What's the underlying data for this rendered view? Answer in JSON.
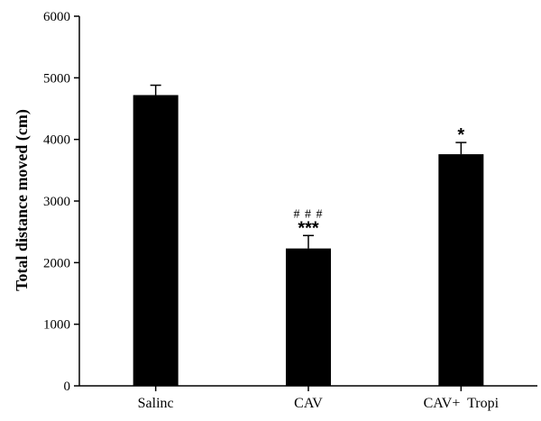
{
  "chart_data": {
    "type": "bar",
    "categories": [
      "Salinc",
      "CAV",
      "CAV+  Tropi"
    ],
    "values": [
      4720,
      2230,
      3760
    ],
    "errors": [
      160,
      210,
      190
    ],
    "annotations": [
      {
        "category": "Salinc",
        "stars": "",
        "hashes": ""
      },
      {
        "category": "CAV",
        "stars": "***",
        "hashes": "###"
      },
      {
        "category": "CAV+  Tropi",
        "stars": "*",
        "hashes": ""
      }
    ],
    "ylabel": "Total distance moved (cm)",
    "xlabel": "",
    "ylim": [
      0,
      6000
    ],
    "yticks": [
      0,
      1000,
      2000,
      3000,
      4000,
      5000,
      6000
    ],
    "grid": false,
    "bar_color": "#000000"
  }
}
